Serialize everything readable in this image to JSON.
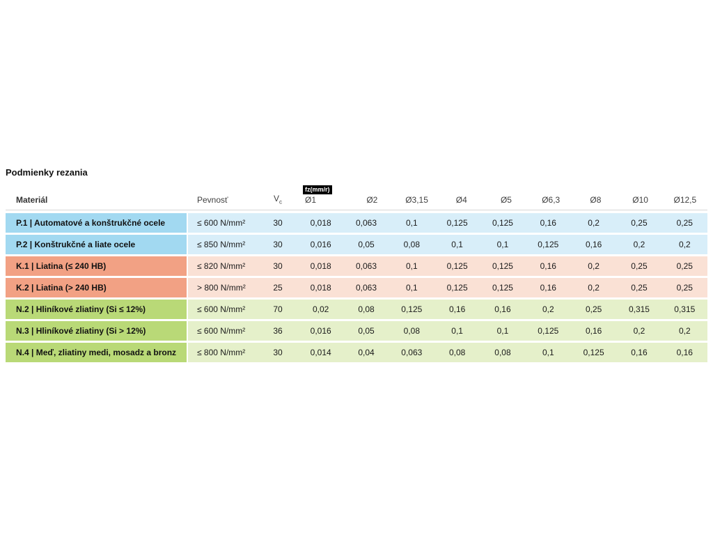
{
  "page": {
    "title": "Podmienky rezania"
  },
  "table": {
    "fz_label": "fz(mm/r)",
    "headers": {
      "material": "Materiál",
      "strength": "Pevnosť",
      "vc_main": "V",
      "vc_sub": "c",
      "diameters": [
        "Ø1",
        "Ø2",
        "Ø3,15",
        "Ø4",
        "Ø5",
        "Ø6,3",
        "Ø8",
        "Ø10",
        "Ø12,5"
      ]
    },
    "colors": {
      "P": {
        "label": "#a2d9f1",
        "cell": "#d8eef9"
      },
      "K": {
        "label": "#f2a184",
        "cell": "#fae1d5"
      },
      "N": {
        "label": "#b9d977",
        "cell": "#e5f0ca"
      }
    },
    "rows": [
      {
        "group": "P",
        "material": "P.1 | Automatové a konštrukčné ocele",
        "strength": "≤ 600 N/mm²",
        "vc": "30",
        "values": [
          "0,018",
          "0,063",
          "0,1",
          "0,125",
          "0,125",
          "0,16",
          "0,2",
          "0,25",
          "0,25"
        ]
      },
      {
        "group": "P",
        "material": "P.2 | Konštrukčné a liate ocele",
        "strength": "≤ 850 N/mm²",
        "vc": "30",
        "values": [
          "0,016",
          "0,05",
          "0,08",
          "0,1",
          "0,1",
          "0,125",
          "0,16",
          "0,2",
          "0,2"
        ]
      },
      {
        "group": "K",
        "material": "K.1 | Liatina (≤ 240 HB)",
        "strength": "≤ 820 N/mm²",
        "vc": "30",
        "values": [
          "0,018",
          "0,063",
          "0,1",
          "0,125",
          "0,125",
          "0,16",
          "0,2",
          "0,25",
          "0,25"
        ]
      },
      {
        "group": "K",
        "material": "K.2 | Liatina (> 240 HB)",
        "strength": "> 800 N/mm²",
        "vc": "25",
        "values": [
          "0,018",
          "0,063",
          "0,1",
          "0,125",
          "0,125",
          "0,16",
          "0,2",
          "0,25",
          "0,25"
        ]
      },
      {
        "group": "N",
        "material": "N.2 | Hliníkové zliatiny (Si ≤ 12%)",
        "strength": "≤ 600 N/mm²",
        "vc": "70",
        "values": [
          "0,02",
          "0,08",
          "0,125",
          "0,16",
          "0,16",
          "0,2",
          "0,25",
          "0,315",
          "0,315"
        ]
      },
      {
        "group": "N",
        "material": "N.3 | Hliníkové zliatiny (Si > 12%)",
        "strength": "≤ 600 N/mm²",
        "vc": "36",
        "values": [
          "0,016",
          "0,05",
          "0,08",
          "0,1",
          "0,1",
          "0,125",
          "0,16",
          "0,2",
          "0,2"
        ]
      },
      {
        "group": "N",
        "material": "N.4 | Meď, zliatiny medi, mosadz a bronz",
        "strength": "≤ 800 N/mm²",
        "vc": "30",
        "values": [
          "0,014",
          "0,04",
          "0,063",
          "0,08",
          "0,08",
          "0,1",
          "0,125",
          "0,16",
          "0,16"
        ]
      }
    ]
  }
}
